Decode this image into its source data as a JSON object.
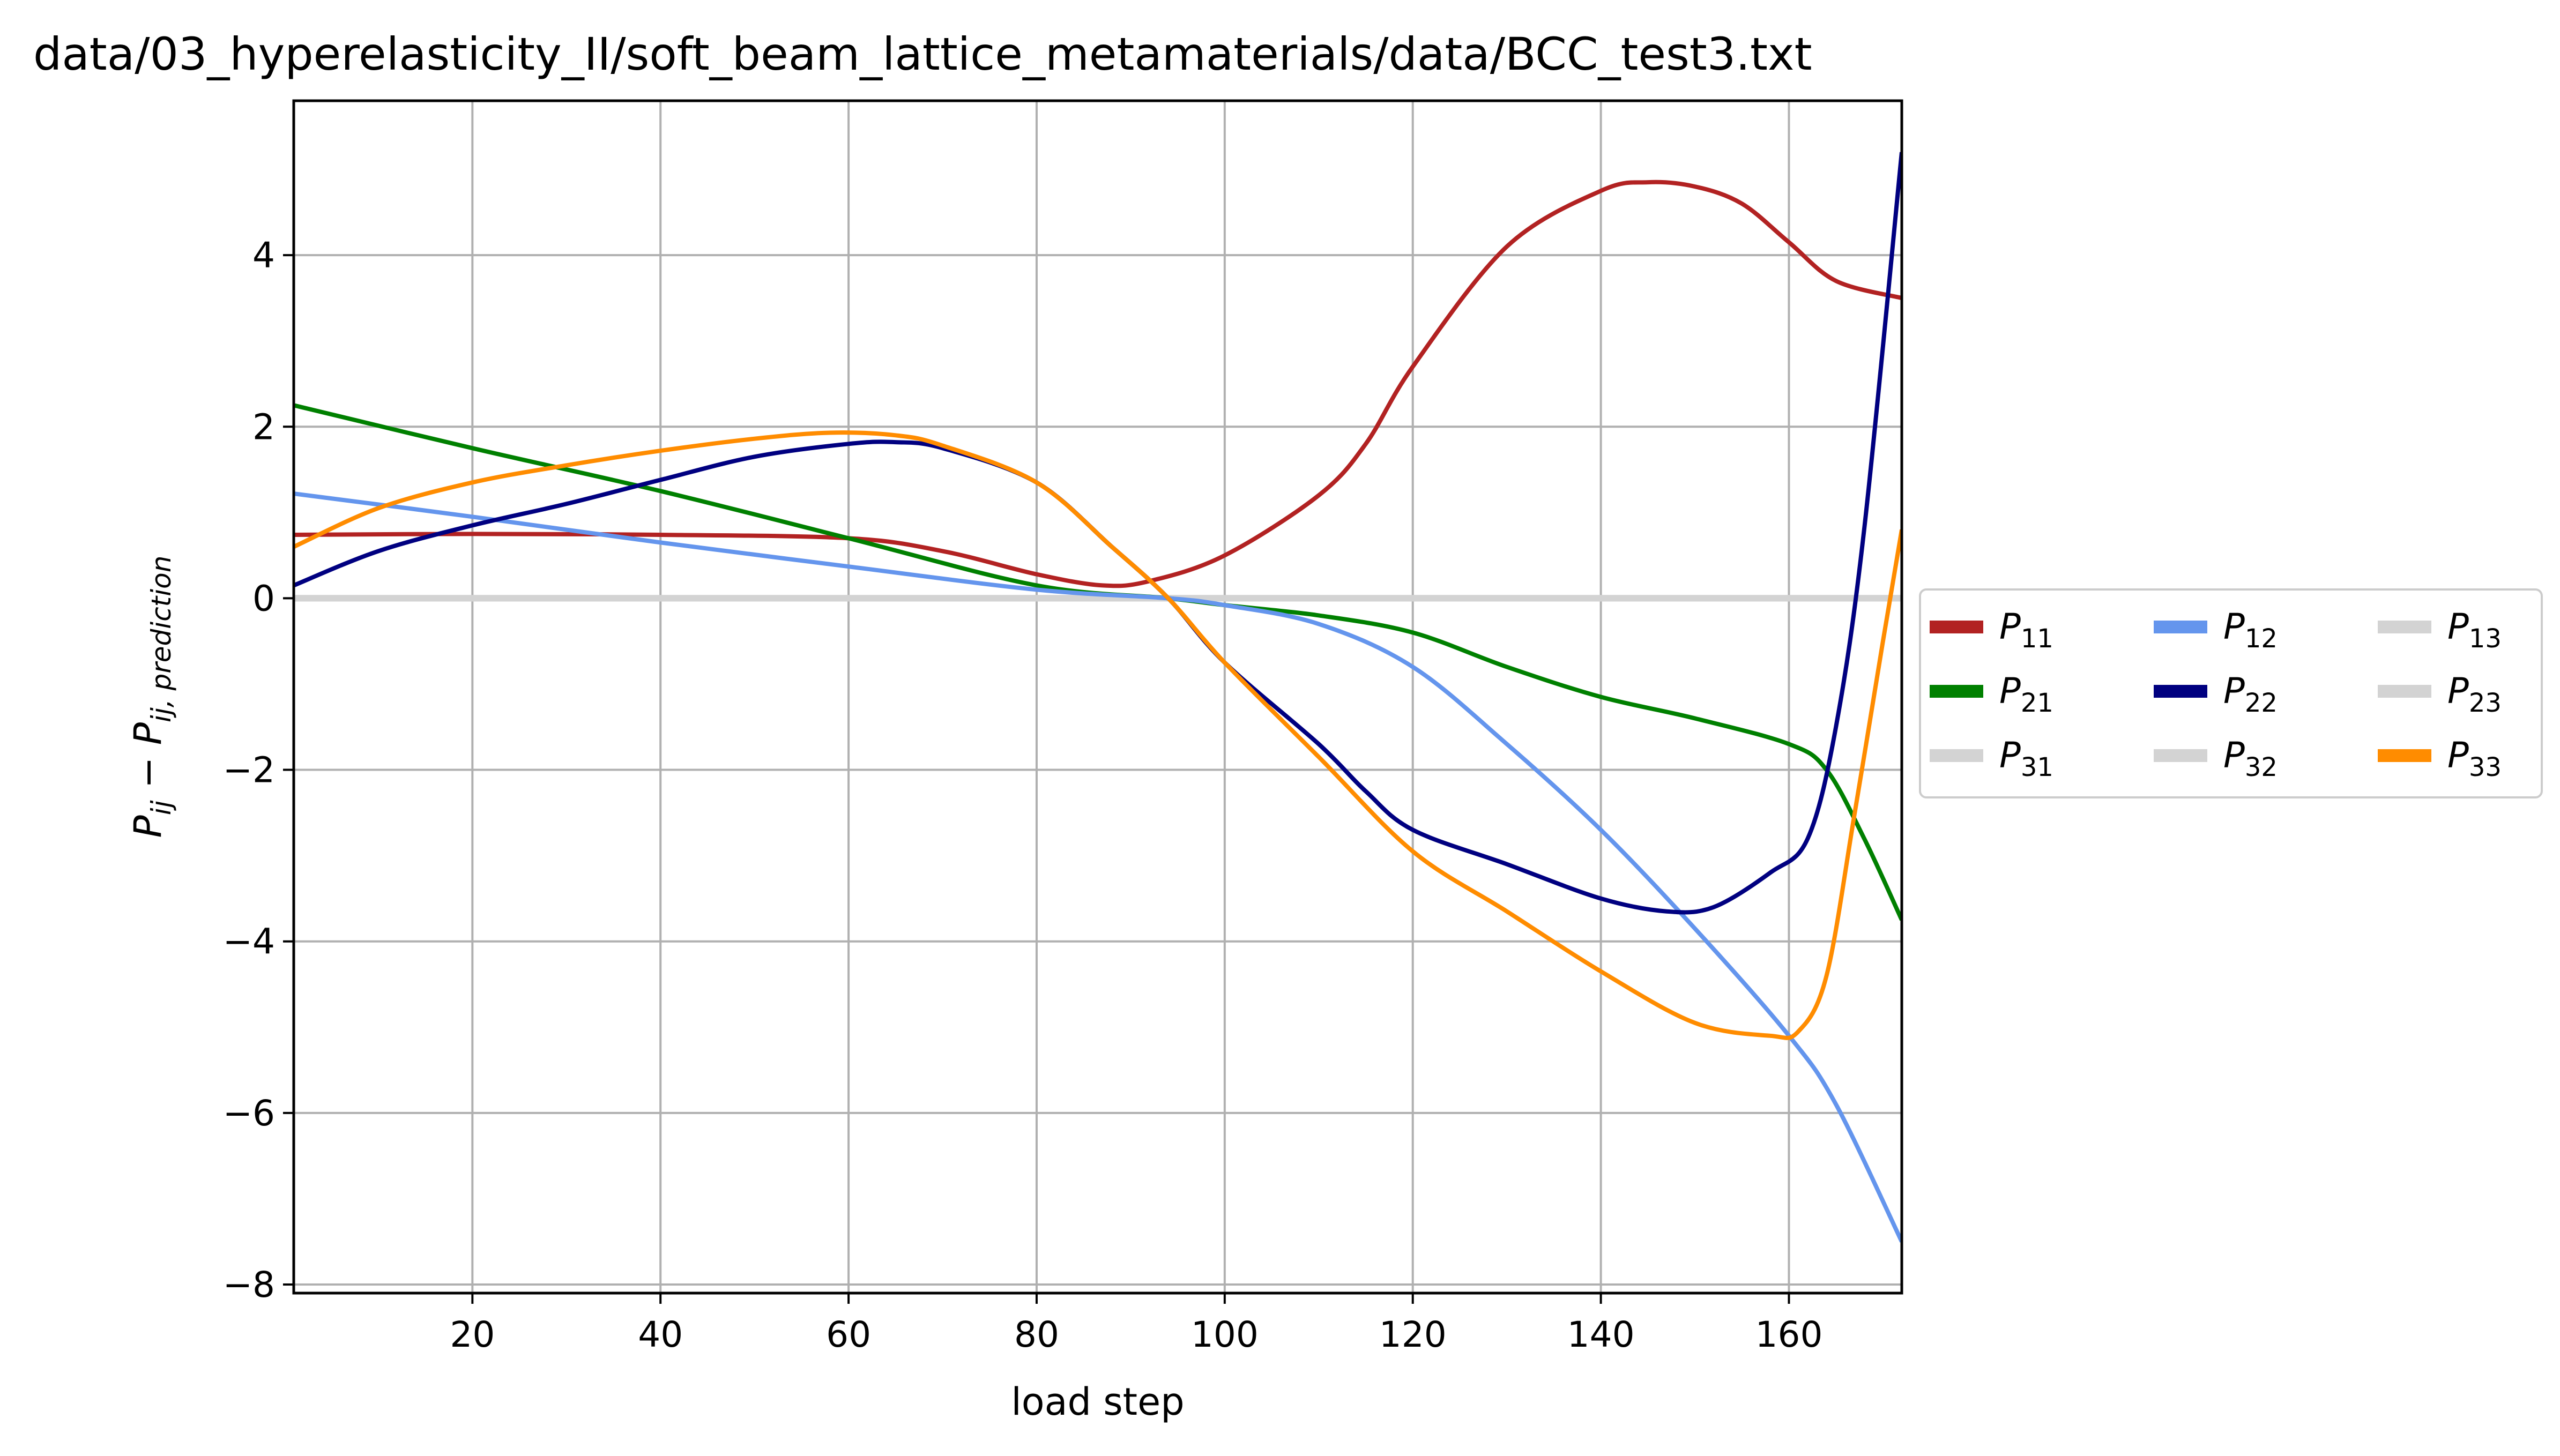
{
  "chart_data": {
    "type": "line",
    "title": "data/03_hyperelasticity_II/soft_beam_lattice_metamaterials/data/BCC_test3.txt",
    "xlabel": "load step",
    "ylabel": {
      "main": "P",
      "sub1": "ij",
      "dash": " − ",
      "main2": "P",
      "sub2": "ij, prediction"
    },
    "xlim": [
      1,
      172
    ],
    "ylim": [
      -8.1,
      5.8
    ],
    "xticks": [
      20,
      40,
      60,
      80,
      100,
      120,
      140,
      160
    ],
    "xtick_labels": [
      "20",
      "40",
      "60",
      "80",
      "100",
      "120",
      "140",
      "160"
    ],
    "yticks": [
      -8,
      -6,
      -4,
      -2,
      0,
      2,
      4
    ],
    "ytick_labels": [
      "−8",
      "−6",
      "−4",
      "−2",
      "0",
      "2",
      "4"
    ],
    "grid": true,
    "legend_position": "right-outside",
    "series": [
      {
        "name": "P11",
        "label_main": "P",
        "label_sub": "11",
        "color": "#b22222",
        "x": [
          1,
          20,
          40,
          60,
          70,
          80,
          87,
          92,
          100,
          110,
          115,
          120,
          130,
          140,
          145,
          150,
          155,
          160,
          165,
          172
        ],
        "y": [
          0.74,
          0.75,
          0.74,
          0.7,
          0.55,
          0.28,
          0.15,
          0.2,
          0.5,
          1.2,
          1.8,
          2.7,
          4.1,
          4.75,
          4.85,
          4.8,
          4.6,
          4.15,
          3.7,
          3.5
        ]
      },
      {
        "name": "P21",
        "label_main": "P",
        "label_sub": "21",
        "color": "#008000",
        "x": [
          1,
          20,
          40,
          60,
          80,
          94,
          100,
          110,
          120,
          130,
          140,
          150,
          160,
          164,
          168,
          172
        ],
        "y": [
          2.25,
          1.75,
          1.25,
          0.7,
          0.15,
          0.0,
          -0.08,
          -0.2,
          -0.4,
          -0.8,
          -1.15,
          -1.4,
          -1.7,
          -2.0,
          -2.8,
          -3.75
        ]
      },
      {
        "name": "P31",
        "label_main": "P",
        "label_sub": "31",
        "color": "#d3d3d3",
        "x": [
          1,
          172
        ],
        "y": [
          0,
          0
        ]
      },
      {
        "name": "P12",
        "label_main": "P",
        "label_sub": "12",
        "color": "#6495ed",
        "x": [
          1,
          20,
          40,
          60,
          80,
          94,
          100,
          110,
          120,
          130,
          140,
          150,
          160,
          165,
          172
        ],
        "y": [
          1.22,
          0.95,
          0.65,
          0.37,
          0.1,
          0.0,
          -0.08,
          -0.3,
          -0.8,
          -1.7,
          -2.7,
          -3.85,
          -5.1,
          -5.9,
          -7.5
        ]
      },
      {
        "name": "P22",
        "label_main": "P",
        "label_sub": "22",
        "color": "#000080",
        "x": [
          1,
          10,
          20,
          30,
          40,
          50,
          60,
          65,
          70,
          80,
          88,
          94,
          100,
          110,
          115,
          120,
          130,
          140,
          147,
          152,
          158,
          162,
          165,
          168,
          172
        ],
        "y": [
          0.15,
          0.55,
          0.85,
          1.1,
          1.38,
          1.65,
          1.8,
          1.82,
          1.75,
          1.35,
          0.6,
          0.0,
          -0.75,
          -1.7,
          -2.25,
          -2.7,
          -3.1,
          -3.5,
          -3.65,
          -3.6,
          -3.2,
          -2.8,
          -1.5,
          0.8,
          5.2
        ]
      },
      {
        "name": "P32",
        "label_main": "P",
        "label_sub": "32",
        "color": "#d3d3d3",
        "x": [
          1,
          172
        ],
        "y": [
          0,
          0
        ]
      },
      {
        "name": "P13",
        "label_main": "P",
        "label_sub": "13",
        "color": "#d3d3d3",
        "x": [
          1,
          172
        ],
        "y": [
          0,
          0
        ]
      },
      {
        "name": "P23",
        "label_main": "P",
        "label_sub": "23",
        "color": "#d3d3d3",
        "x": [
          1,
          172
        ],
        "y": [
          0,
          0
        ]
      },
      {
        "name": "P33",
        "label_main": "P",
        "label_sub": "33",
        "color": "#ff8c00",
        "x": [
          1,
          10,
          20,
          30,
          40,
          50,
          58,
          65,
          70,
          80,
          88,
          94,
          100,
          110,
          120,
          130,
          140,
          150,
          158,
          161,
          164,
          167,
          170,
          172
        ],
        "y": [
          0.6,
          1.05,
          1.35,
          1.55,
          1.72,
          1.86,
          1.93,
          1.9,
          1.78,
          1.35,
          0.6,
          0.0,
          -0.75,
          -1.85,
          -2.95,
          -3.65,
          -4.35,
          -4.95,
          -5.1,
          -5.05,
          -4.4,
          -2.5,
          -0.5,
          0.8
        ]
      }
    ]
  }
}
